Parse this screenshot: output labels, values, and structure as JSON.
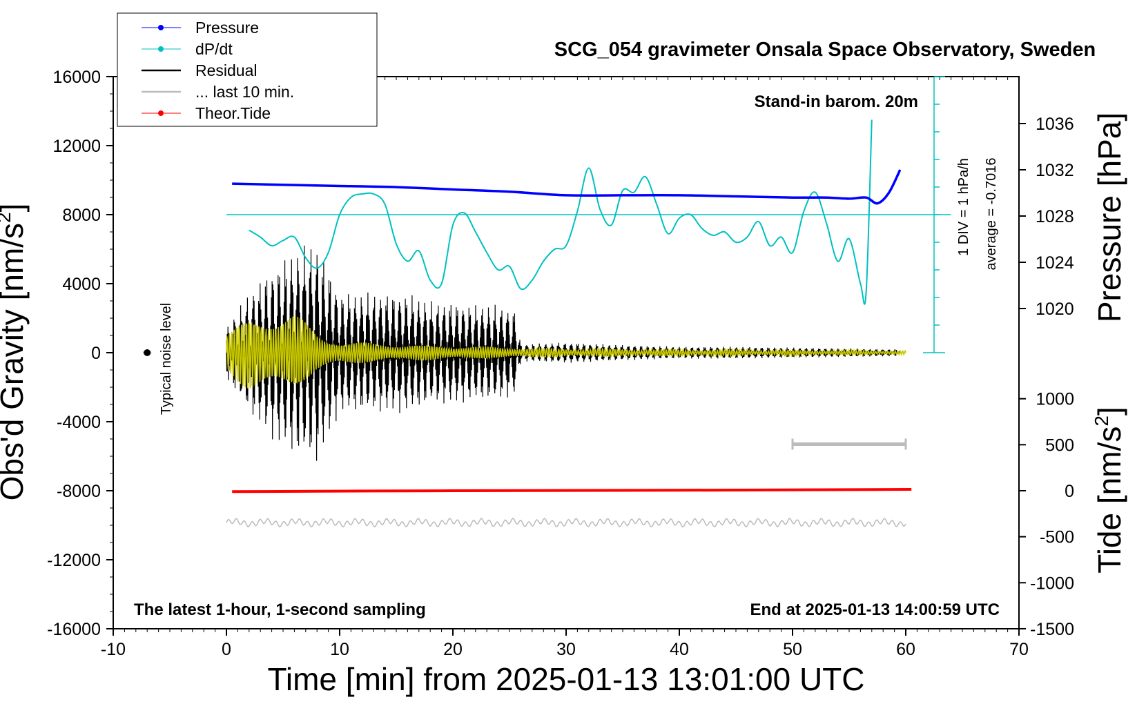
{
  "chart_data": {
    "type": "line",
    "title": "SCG_054 gravimeter Onsala Space Observatory, Sweden",
    "xlabel": "Time [min] from 2025-01-13 13:01:00 UTC",
    "ylabel_left": "Obs'd Gravity [nm/s",
    "ylabel_left_sup": "2",
    "ylabel_left_close": "]",
    "ylabel_right_pressure": "Pressure [hPa]",
    "ylabel_right_tide": "Tide [nm/s",
    "ylabel_right_tide_sup": "2",
    "ylabel_right_tide_close": "]",
    "xlim": [
      -10,
      70
    ],
    "ylim": [
      -16000,
      16000
    ],
    "x_ticks": [
      "-10",
      "0",
      "10",
      "20",
      "30",
      "40",
      "50",
      "60",
      "70"
    ],
    "y_ticks": [
      "16000",
      "12000",
      "8000",
      "4000",
      "0",
      "-4000",
      "-8000",
      "-12000",
      "-16000"
    ],
    "pressure_ticks": [
      "1036",
      "1032",
      "1028",
      "1024",
      "1020"
    ],
    "tide_ticks": [
      "1000",
      "500",
      "0",
      "-500",
      "-1000",
      "-1500"
    ],
    "annotations": {
      "barom": "Stand-in barom. 20m",
      "div": "1 DIV = 1 hPa/h",
      "average": "average = -0.7016",
      "noise": "Typical noise level",
      "bottom_left": "The latest 1-hour, 1-second sampling",
      "bottom_right": "End at 2025-01-13 14:00:59 UTC"
    },
    "legend": {
      "placement": "top-left",
      "entries": [
        {
          "label": "Pressure",
          "color": "#0000ff",
          "marker": true
        },
        {
          "label": "dP/dt",
          "color": "#00c0c0",
          "marker": true
        },
        {
          "label": "Residual",
          "color": "#000000",
          "marker": false
        },
        {
          "label": "... last 10 min.",
          "color": "#bbbbbb",
          "marker": false
        },
        {
          "label": "Theor.Tide",
          "color": "#ff0000",
          "marker": true
        }
      ]
    },
    "series": [
      {
        "name": "Pressure",
        "color": "#0000ff",
        "axis": "pressure_hPa",
        "x": [
          0.5,
          5,
          10,
          15,
          20,
          25,
          30,
          35,
          40,
          45,
          50,
          53,
          55,
          56.5,
          57.5,
          58.5,
          59.5
        ],
        "y": [
          1030.8,
          1030.7,
          1030.6,
          1030.5,
          1030.3,
          1030.1,
          1029.8,
          1029.8,
          1029.8,
          1029.7,
          1029.6,
          1029.6,
          1029.5,
          1029.6,
          1029.1,
          1030.0,
          1032.0
        ]
      },
      {
        "name": "dP/dt",
        "color": "#00c0c0",
        "axis": "gravity_units",
        "x": [
          2,
          3,
          4,
          5,
          6,
          7,
          8,
          9,
          10,
          11,
          12,
          13,
          14,
          15,
          16,
          17,
          18,
          19,
          20,
          21,
          22,
          23,
          24,
          25,
          26,
          27,
          28,
          29,
          30,
          31,
          32,
          33,
          34,
          35,
          36,
          37,
          38,
          39,
          40,
          41,
          42,
          43,
          44,
          45,
          46,
          47,
          48,
          49,
          50,
          51,
          52,
          53,
          54,
          55,
          56,
          56.5,
          57
        ],
        "y": [
          7100,
          6700,
          6200,
          6500,
          6700,
          5500,
          4900,
          5800,
          8000,
          9000,
          9200,
          9200,
          8600,
          6300,
          5300,
          5900,
          4200,
          4000,
          7400,
          8100,
          7000,
          5800,
          4800,
          5000,
          3700,
          4200,
          5300,
          6000,
          6200,
          8200,
          10700,
          8300,
          7400,
          9400,
          9300,
          10200,
          8600,
          6900,
          7800,
          8000,
          7200,
          6800,
          7000,
          6400,
          6700,
          7600,
          6200,
          6700,
          5800,
          8200,
          9300,
          7500,
          5300,
          6600,
          4000,
          3500,
          13500
        ]
      },
      {
        "name": "Residual",
        "color": "#000000",
        "axis": "gravity_units",
        "envelope_x": [
          0,
          2,
          4,
          6,
          8,
          10,
          12,
          14,
          16,
          18,
          20,
          22,
          24,
          25.5,
          26,
          30,
          35,
          40,
          45,
          50,
          55,
          59.5
        ],
        "envelope_amplitude": [
          1500,
          3500,
          5000,
          6000,
          6500,
          3500,
          3500,
          3500,
          3500,
          3000,
          3000,
          2800,
          2800,
          2500,
          500,
          600,
          450,
          350,
          350,
          300,
          250,
          200
        ]
      },
      {
        "name": "Yellow filtered",
        "color": "#c8c800",
        "axis": "gravity_units",
        "envelope_x": [
          0,
          2,
          4,
          6,
          8,
          10,
          15,
          20,
          30,
          40,
          50,
          60
        ],
        "envelope_amplitude": [
          1200,
          2200,
          2400,
          2300,
          1200,
          700,
          500,
          400,
          250,
          200,
          150,
          120
        ]
      },
      {
        "name": "... last 10 min.",
        "color": "#bbbbbb",
        "axis": "gravity_units",
        "baseline": -9850,
        "amplitude": 250
      },
      {
        "name": "Theor.Tide",
        "color": "#ff0000",
        "axis": "tide_nm_s2",
        "x": [
          0.5,
          20,
          40,
          60.5
        ],
        "y": [
          -10,
          0,
          5,
          15
        ]
      }
    ],
    "noise_point": {
      "x": -7,
      "y": 0
    },
    "scale_bar": {
      "x_start": 50,
      "x_end": 60,
      "y": -5300
    },
    "dpdt_reference_line": {
      "y": 8000,
      "x_start": 0,
      "x_end": 64
    },
    "dpdt_scale_axis": {
      "x": 62.5,
      "y_top": 16000,
      "y_bottom": 0,
      "divisions": 10
    }
  }
}
